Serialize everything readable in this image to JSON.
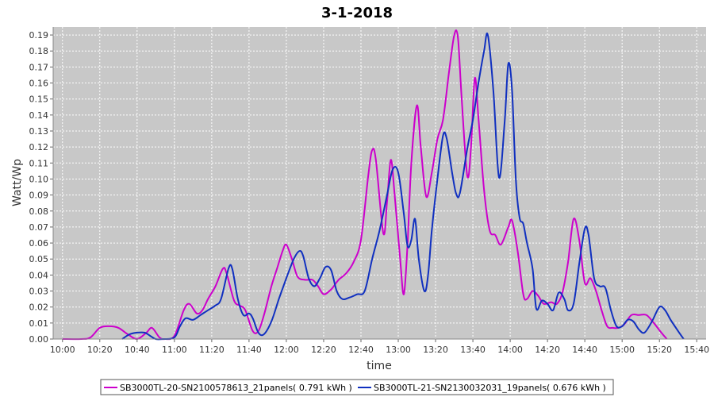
{
  "chart_data": {
    "type": "line",
    "title": "3-1-2018",
    "xlabel": "time",
    "ylabel": "Watt/Wp",
    "xlim": [
      "09:55",
      "15:45"
    ],
    "ylim": [
      0,
      0.195
    ],
    "x_ticks": [
      "10:00",
      "10:20",
      "10:40",
      "11:00",
      "11:20",
      "11:40",
      "12:00",
      "12:20",
      "12:40",
      "13:00",
      "13:20",
      "13:40",
      "14:00",
      "14:20",
      "14:40",
      "15:00",
      "15:20",
      "15:40"
    ],
    "y_ticks": [
      "0.00",
      "0.01",
      "0.02",
      "0.03",
      "0.04",
      "0.05",
      "0.06",
      "0.07",
      "0.08",
      "0.09",
      "0.10",
      "0.11",
      "0.12",
      "0.13",
      "0.14",
      "0.15",
      "0.16",
      "0.17",
      "0.18",
      "0.19"
    ],
    "y_tick_values": [
      0,
      0.01,
      0.02,
      0.03,
      0.04,
      0.05,
      0.06,
      0.07,
      0.08,
      0.09,
      0.1,
      0.11,
      0.12,
      0.13,
      0.14,
      0.15,
      0.16,
      0.17,
      0.18,
      0.19
    ],
    "grid": true,
    "legend_position": "bottom",
    "series": [
      {
        "name": "SB3000TL-20-SN2100578613_21panels( 0.791 kWh )",
        "color": "#cc00cc",
        "points": [
          [
            "10:00",
            0.0
          ],
          [
            "10:10",
            0.0
          ],
          [
            "10:15",
            0.001
          ],
          [
            "10:20",
            0.007
          ],
          [
            "10:25",
            0.008
          ],
          [
            "10:30",
            0.007
          ],
          [
            "10:35",
            0.003
          ],
          [
            "10:40",
            0.0
          ],
          [
            "10:45",
            0.004
          ],
          [
            "10:48",
            0.007
          ],
          [
            "10:52",
            0.001
          ],
          [
            "10:55",
            0.0
          ],
          [
            "11:00",
            0.002
          ],
          [
            "11:05",
            0.018
          ],
          [
            "11:08",
            0.022
          ],
          [
            "11:12",
            0.016
          ],
          [
            "11:15",
            0.018
          ],
          [
            "11:18",
            0.025
          ],
          [
            "11:22",
            0.033
          ],
          [
            "11:26",
            0.044
          ],
          [
            "11:28",
            0.041
          ],
          [
            "11:32",
            0.024
          ],
          [
            "11:35",
            0.021
          ],
          [
            "11:38",
            0.018
          ],
          [
            "11:42",
            0.005
          ],
          [
            "11:45",
            0.005
          ],
          [
            "11:48",
            0.015
          ],
          [
            "11:52",
            0.033
          ],
          [
            "11:55",
            0.044
          ],
          [
            "11:58",
            0.055
          ],
          [
            "12:00",
            0.059
          ],
          [
            "12:03",
            0.05
          ],
          [
            "12:06",
            0.039
          ],
          [
            "12:10",
            0.037
          ],
          [
            "12:14",
            0.037
          ],
          [
            "12:17",
            0.033
          ],
          [
            "12:20",
            0.028
          ],
          [
            "12:24",
            0.031
          ],
          [
            "12:28",
            0.037
          ],
          [
            "12:32",
            0.041
          ],
          [
            "12:36",
            0.048
          ],
          [
            "12:40",
            0.062
          ],
          [
            "12:44",
            0.103
          ],
          [
            "12:46",
            0.118
          ],
          [
            "12:48",
            0.112
          ],
          [
            "12:52",
            0.066
          ],
          [
            "12:54",
            0.086
          ],
          [
            "12:56",
            0.112
          ],
          [
            "12:58",
            0.091
          ],
          [
            "13:01",
            0.05
          ],
          [
            "13:03",
            0.028
          ],
          [
            "13:05",
            0.06
          ],
          [
            "13:07",
            0.11
          ],
          [
            "13:10",
            0.146
          ],
          [
            "13:12",
            0.121
          ],
          [
            "13:15",
            0.089
          ],
          [
            "13:18",
            0.104
          ],
          [
            "13:21",
            0.125
          ],
          [
            "13:24",
            0.137
          ],
          [
            "13:27",
            0.165
          ],
          [
            "13:30",
            0.19
          ],
          [
            "13:32",
            0.188
          ],
          [
            "13:34",
            0.15
          ],
          [
            "13:37",
            0.102
          ],
          [
            "13:39",
            0.12
          ],
          [
            "13:41",
            0.163
          ],
          [
            "13:43",
            0.138
          ],
          [
            "13:46",
            0.093
          ],
          [
            "13:49",
            0.068
          ],
          [
            "13:52",
            0.065
          ],
          [
            "13:55",
            0.059
          ],
          [
            "13:59",
            0.07
          ],
          [
            "14:01",
            0.074
          ],
          [
            "14:04",
            0.055
          ],
          [
            "14:07",
            0.028
          ],
          [
            "14:09",
            0.025
          ],
          [
            "14:12",
            0.03
          ],
          [
            "14:15",
            0.027
          ],
          [
            "14:18",
            0.022
          ],
          [
            "14:22",
            0.023
          ],
          [
            "14:25",
            0.022
          ],
          [
            "14:28",
            0.029
          ],
          [
            "14:31",
            0.048
          ],
          [
            "14:34",
            0.075
          ],
          [
            "14:37",
            0.062
          ],
          [
            "14:40",
            0.035
          ],
          [
            "14:43",
            0.038
          ],
          [
            "14:46",
            0.03
          ],
          [
            "14:49",
            0.018
          ],
          [
            "14:52",
            0.008
          ],
          [
            "14:55",
            0.007
          ],
          [
            "14:58",
            0.007
          ],
          [
            "15:01",
            0.009
          ],
          [
            "15:05",
            0.015
          ],
          [
            "15:09",
            0.015
          ],
          [
            "15:13",
            0.015
          ],
          [
            "15:17",
            0.01
          ],
          [
            "15:21",
            0.004
          ],
          [
            "15:24",
            0.0
          ]
        ]
      },
      {
        "name": "SB3000TL-21-SN2130032031_19panels( 0.676 kWh )",
        "color": "#1030c0",
        "points": [
          [
            "10:32",
            0.0
          ],
          [
            "10:36",
            0.003
          ],
          [
            "10:40",
            0.004
          ],
          [
            "10:44",
            0.004
          ],
          [
            "10:47",
            0.002
          ],
          [
            "10:50",
            0.0
          ],
          [
            "10:54",
            0.0
          ],
          [
            "11:00",
            0.001
          ],
          [
            "11:03",
            0.008
          ],
          [
            "11:06",
            0.013
          ],
          [
            "11:10",
            0.012
          ],
          [
            "11:14",
            0.015
          ],
          [
            "11:18",
            0.018
          ],
          [
            "11:22",
            0.021
          ],
          [
            "11:25",
            0.025
          ],
          [
            "11:29",
            0.044
          ],
          [
            "11:31",
            0.044
          ],
          [
            "11:34",
            0.025
          ],
          [
            "11:37",
            0.015
          ],
          [
            "11:40",
            0.016
          ],
          [
            "11:42",
            0.013
          ],
          [
            "11:45",
            0.004
          ],
          [
            "11:48",
            0.003
          ],
          [
            "11:52",
            0.011
          ],
          [
            "11:56",
            0.025
          ],
          [
            "12:00",
            0.038
          ],
          [
            "12:04",
            0.05
          ],
          [
            "12:07",
            0.055
          ],
          [
            "12:09",
            0.052
          ],
          [
            "12:12",
            0.038
          ],
          [
            "12:15",
            0.033
          ],
          [
            "12:18",
            0.038
          ],
          [
            "12:21",
            0.045
          ],
          [
            "12:24",
            0.043
          ],
          [
            "12:27",
            0.03
          ],
          [
            "12:30",
            0.025
          ],
          [
            "12:34",
            0.026
          ],
          [
            "12:38",
            0.028
          ],
          [
            "12:42",
            0.03
          ],
          [
            "12:46",
            0.05
          ],
          [
            "12:50",
            0.068
          ],
          [
            "12:54",
            0.09
          ],
          [
            "12:57",
            0.106
          ],
          [
            "13:00",
            0.104
          ],
          [
            "13:03",
            0.078
          ],
          [
            "13:05",
            0.058
          ],
          [
            "13:07",
            0.062
          ],
          [
            "13:09",
            0.075
          ],
          [
            "13:11",
            0.05
          ],
          [
            "13:14",
            0.03
          ],
          [
            "13:16",
            0.04
          ],
          [
            "13:18",
            0.068
          ],
          [
            "13:21",
            0.1
          ],
          [
            "13:24",
            0.127
          ],
          [
            "13:26",
            0.125
          ],
          [
            "13:29",
            0.103
          ],
          [
            "13:31",
            0.091
          ],
          [
            "13:33",
            0.091
          ],
          [
            "13:37",
            0.119
          ],
          [
            "13:40",
            0.137
          ],
          [
            "13:43",
            0.16
          ],
          [
            "13:46",
            0.18
          ],
          [
            "13:48",
            0.19
          ],
          [
            "13:51",
            0.155
          ],
          [
            "13:54",
            0.101
          ],
          [
            "13:57",
            0.135
          ],
          [
            "13:59",
            0.172
          ],
          [
            "14:01",
            0.155
          ],
          [
            "14:03",
            0.1
          ],
          [
            "14:05",
            0.076
          ],
          [
            "14:07",
            0.072
          ],
          [
            "14:09",
            0.06
          ],
          [
            "14:12",
            0.044
          ],
          [
            "14:14",
            0.019
          ],
          [
            "14:17",
            0.024
          ],
          [
            "14:20",
            0.022
          ],
          [
            "14:23",
            0.018
          ],
          [
            "14:26",
            0.029
          ],
          [
            "14:29",
            0.025
          ],
          [
            "14:31",
            0.018
          ],
          [
            "14:34",
            0.022
          ],
          [
            "14:37",
            0.047
          ],
          [
            "14:40",
            0.069
          ],
          [
            "14:42",
            0.065
          ],
          [
            "14:45",
            0.038
          ],
          [
            "14:48",
            0.033
          ],
          [
            "14:51",
            0.032
          ],
          [
            "14:54",
            0.018
          ],
          [
            "14:57",
            0.008
          ],
          [
            "15:00",
            0.008
          ],
          [
            "15:03",
            0.012
          ],
          [
            "15:06",
            0.011
          ],
          [
            "15:09",
            0.006
          ],
          [
            "15:12",
            0.004
          ],
          [
            "15:16",
            0.011
          ],
          [
            "15:20",
            0.02
          ],
          [
            "15:23",
            0.018
          ],
          [
            "15:26",
            0.012
          ],
          [
            "15:30",
            0.005
          ],
          [
            "15:33",
            0.0
          ]
        ]
      }
    ]
  }
}
